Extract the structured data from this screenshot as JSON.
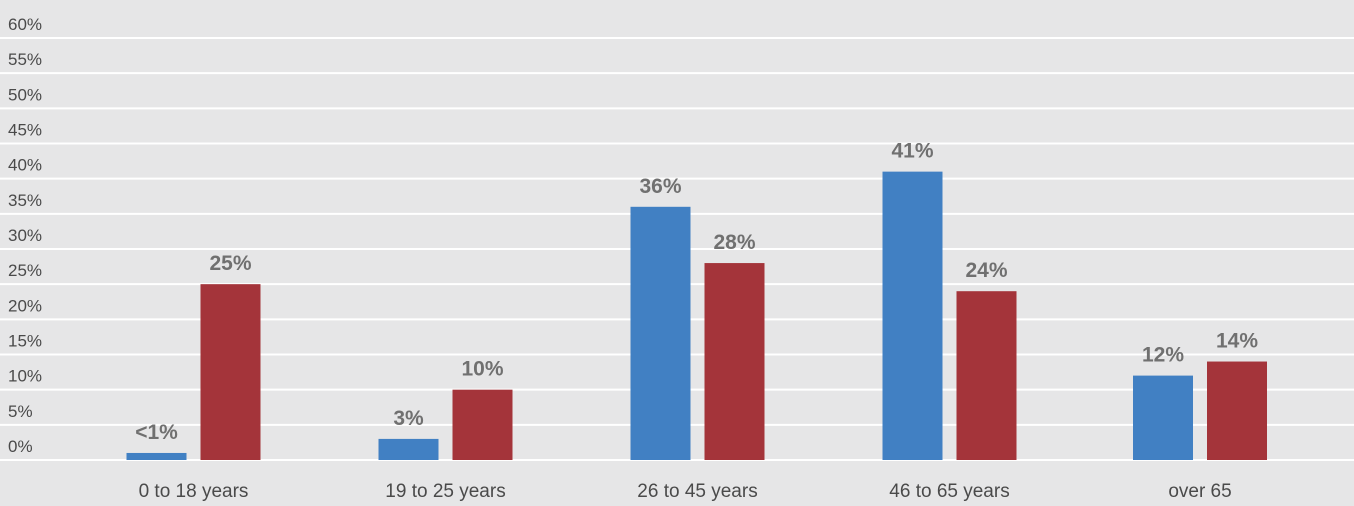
{
  "chart_data": {
    "type": "bar",
    "categories": [
      "0 to 18 years",
      "19 to 25 years",
      "26 to 45 years",
      "46 to 65 years",
      "over 65"
    ],
    "series": [
      {
        "color": "#4180c3",
        "values": [
          1,
          3,
          36,
          41,
          12
        ],
        "labels": [
          "<1%",
          "3%",
          "36%",
          "41%",
          "12%"
        ]
      },
      {
        "color": "#a4343a",
        "values": [
          25,
          10,
          28,
          24,
          14
        ],
        "labels": [
          "25%",
          "10%",
          "28%",
          "24%",
          "14%"
        ]
      }
    ],
    "y_ticks": [
      "0%",
      "5%",
      "10%",
      "15%",
      "20%",
      "25%",
      "30%",
      "35%",
      "40%",
      "45%",
      "50%",
      "55%",
      "60%"
    ],
    "ylim": [
      0,
      60
    ],
    "grid": true,
    "legend": "none",
    "title": "",
    "xlabel": "",
    "ylabel": ""
  }
}
